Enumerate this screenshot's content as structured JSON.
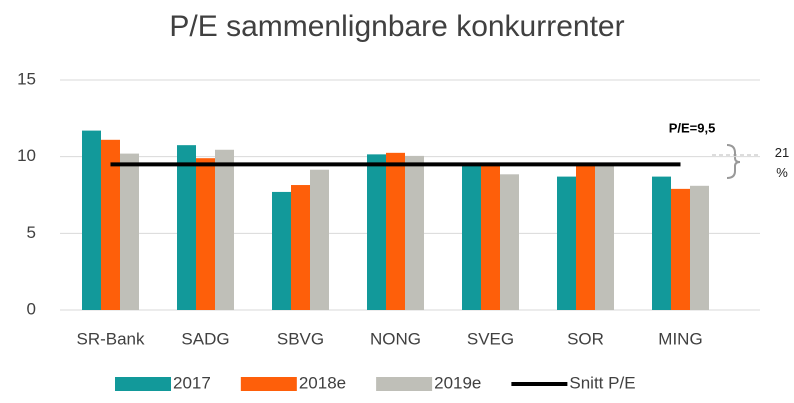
{
  "chart_data": {
    "type": "bar",
    "title": "P/E sammenlignbare konkurrenter",
    "categories": [
      "SR-Bank",
      "SADG",
      "SBVG",
      "NONG",
      "SVEG",
      "SOR",
      "MING"
    ],
    "series": [
      {
        "name": "2017",
        "color": "#12999a",
        "values": [
          11.7,
          10.75,
          7.7,
          10.15,
          9.5,
          8.7,
          8.7
        ]
      },
      {
        "name": "2018e",
        "color": "#fe5f0a",
        "values": [
          11.1,
          9.9,
          8.15,
          10.25,
          9.4,
          9.5,
          7.9
        ]
      },
      {
        "name": "2019e",
        "color": "#bfbfb8",
        "values": [
          10.2,
          10.45,
          9.15,
          10.05,
          8.85,
          9.5,
          8.1
        ]
      },
      {
        "name": "Snitt P/E",
        "type": "line",
        "color": "#000000",
        "values": [
          9.5,
          9.5,
          9.5,
          9.5,
          9.5,
          9.5,
          9.5
        ]
      }
    ],
    "annotations": [
      "P/E=9,5",
      "21 %"
    ],
    "ylim": [
      0,
      15
    ],
    "yticks": [
      0,
      5,
      10,
      15
    ],
    "grid": true,
    "legend": "bottom"
  }
}
